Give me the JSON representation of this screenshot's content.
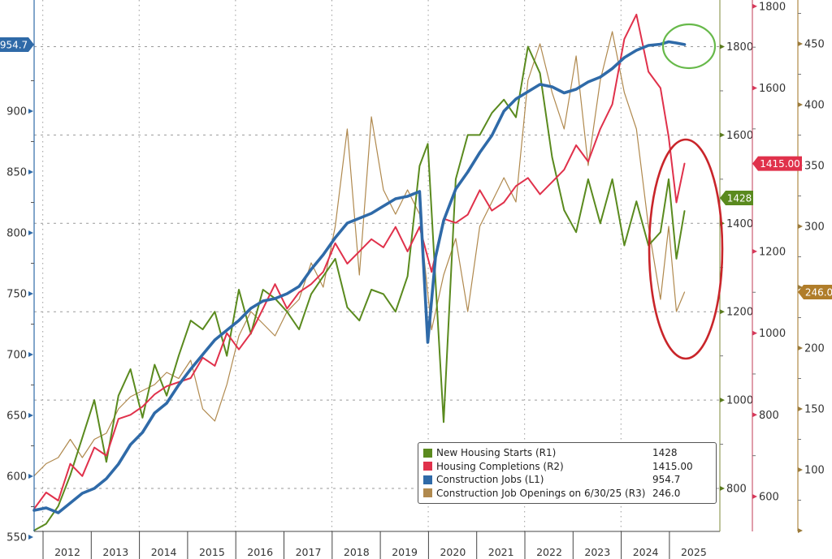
{
  "chart_data": {
    "type": "line",
    "title": "",
    "xlabel": "",
    "x_ticks": [
      "2012",
      "2013",
      "2014",
      "2015",
      "2016",
      "2017",
      "2018",
      "2019",
      "2020",
      "2021",
      "2022",
      "2023",
      "2024",
      "2025"
    ],
    "x_range": [
      2012.0,
      2025.6
    ],
    "axes": {
      "L1": {
        "ticks": [
          "550",
          "600",
          "650",
          "700",
          "750",
          "800",
          "850",
          "900"
        ],
        "range": [
          538,
          985
        ]
      },
      "R1": {
        "ticks": [
          "800",
          "1000",
          "1200",
          "1400",
          "1600",
          "1800"
        ],
        "range": [
          705,
          1910
        ]
      },
      "R2": {
        "ticks": [
          "600",
          "800",
          "1000",
          "1200",
          "1600",
          "1800"
        ],
        "range": [
          500,
          1820
        ]
      },
      "R3": {
        "ticks": [
          "100",
          "150",
          "200",
          "250",
          "300",
          "350",
          "400",
          "450"
        ],
        "range": [
          50,
          490
        ]
      }
    },
    "grid": true,
    "legend_position": "bottom-right",
    "series": [
      {
        "name": "New Housing Starts (R1)",
        "axis": "R1",
        "color": "#5a8a1e",
        "last_value": "1428",
        "x": [
          2012.0,
          2012.25,
          2012.5,
          2012.75,
          2013.0,
          2013.25,
          2013.5,
          2013.75,
          2014.0,
          2014.25,
          2014.5,
          2014.75,
          2015.0,
          2015.25,
          2015.5,
          2015.75,
          2016.0,
          2016.25,
          2016.5,
          2016.75,
          2017.0,
          2017.25,
          2017.5,
          2017.75,
          2018.0,
          2018.25,
          2018.5,
          2018.75,
          2019.0,
          2019.25,
          2019.5,
          2019.75,
          2020.0,
          2020.17,
          2020.33,
          2020.5,
          2020.75,
          2021.0,
          2021.25,
          2021.5,
          2021.75,
          2022.0,
          2022.25,
          2022.5,
          2022.75,
          2023.0,
          2023.25,
          2023.5,
          2023.75,
          2024.0,
          2024.25,
          2024.5,
          2024.75,
          2025.0,
          2025.17,
          2025.33,
          2025.5
        ],
        "values": [
          705,
          720,
          760,
          830,
          915,
          1000,
          860,
          1010,
          1070,
          960,
          1080,
          1010,
          1100,
          1180,
          1160,
          1200,
          1100,
          1250,
          1150,
          1250,
          1230,
          1200,
          1160,
          1240,
          1280,
          1320,
          1210,
          1180,
          1250,
          1240,
          1200,
          1280,
          1530,
          1580,
          1270,
          950,
          1500,
          1600,
          1600,
          1650,
          1680,
          1640,
          1800,
          1740,
          1550,
          1430,
          1380,
          1500,
          1400,
          1500,
          1350,
          1450,
          1350,
          1380,
          1500,
          1320,
          1428
        ]
      },
      {
        "name": "Housing Completions (R2)",
        "axis": "R2",
        "color": "#e0314b",
        "last_value": "1415.00",
        "x": [
          2012.0,
          2012.25,
          2012.5,
          2012.75,
          2013.0,
          2013.25,
          2013.5,
          2013.75,
          2014.0,
          2014.25,
          2014.5,
          2014.75,
          2015.0,
          2015.25,
          2015.5,
          2015.75,
          2016.0,
          2016.25,
          2016.5,
          2016.75,
          2017.0,
          2017.25,
          2017.5,
          2017.75,
          2018.0,
          2018.25,
          2018.5,
          2018.75,
          2019.0,
          2019.25,
          2019.5,
          2019.75,
          2020.0,
          2020.25,
          2020.5,
          2020.75,
          2021.0,
          2021.25,
          2021.5,
          2021.75,
          2022.0,
          2022.25,
          2022.5,
          2022.75,
          2023.0,
          2023.25,
          2023.5,
          2023.75,
          2024.0,
          2024.25,
          2024.5,
          2024.75,
          2025.0,
          2025.17,
          2025.33,
          2025.5
        ],
        "values": [
          570,
          610,
          590,
          680,
          650,
          720,
          700,
          790,
          800,
          820,
          850,
          870,
          880,
          890,
          940,
          920,
          1000,
          960,
          1000,
          1060,
          1120,
          1060,
          1100,
          1120,
          1150,
          1220,
          1170,
          1200,
          1230,
          1210,
          1260,
          1200,
          1260,
          1150,
          1280,
          1270,
          1290,
          1350,
          1300,
          1320,
          1360,
          1380,
          1340,
          1370,
          1400,
          1460,
          1420,
          1500,
          1560,
          1720,
          1780,
          1640,
          1600,
          1480,
          1320,
          1415
        ]
      },
      {
        "name": "Construction Jobs (L1)",
        "axis": "L1",
        "color": "#2f6aa8",
        "last_value": "954.7",
        "x": [
          2012.0,
          2012.25,
          2012.5,
          2012.75,
          2013.0,
          2013.25,
          2013.5,
          2013.75,
          2014.0,
          2014.25,
          2014.5,
          2014.75,
          2015.0,
          2015.25,
          2015.5,
          2015.75,
          2016.0,
          2016.25,
          2016.5,
          2016.75,
          2017.0,
          2017.25,
          2017.5,
          2017.75,
          2018.0,
          2018.25,
          2018.5,
          2018.75,
          2019.0,
          2019.25,
          2019.5,
          2019.75,
          2020.0,
          2020.17,
          2020.33,
          2020.5,
          2020.75,
          2021.0,
          2021.25,
          2021.5,
          2021.75,
          2022.0,
          2022.25,
          2022.5,
          2022.75,
          2023.0,
          2023.25,
          2023.5,
          2023.75,
          2024.0,
          2024.25,
          2024.5,
          2024.75,
          2025.0,
          2025.17,
          2025.33,
          2025.5
        ],
        "values": [
          572,
          574,
          570,
          578,
          586,
          590,
          598,
          610,
          626,
          636,
          652,
          660,
          675,
          688,
          700,
          712,
          720,
          728,
          738,
          744,
          746,
          750,
          756,
          770,
          782,
          796,
          808,
          812,
          816,
          822,
          828,
          830,
          834,
          710,
          780,
          810,
          836,
          850,
          866,
          880,
          900,
          910,
          916,
          922,
          920,
          915,
          918,
          924,
          928,
          935,
          944,
          950,
          954,
          955,
          957,
          956,
          954.7
        ]
      },
      {
        "name": "Construction Job Openings on 6/30/25 (R3)",
        "axis": "R3",
        "color": "#b0894e",
        "last_value": "246.0",
        "x": [
          2012.0,
          2012.25,
          2012.5,
          2012.75,
          2013.0,
          2013.25,
          2013.5,
          2013.75,
          2014.0,
          2014.25,
          2014.5,
          2014.75,
          2015.0,
          2015.25,
          2015.5,
          2015.75,
          2016.0,
          2016.25,
          2016.5,
          2016.75,
          2017.0,
          2017.25,
          2017.5,
          2017.75,
          2018.0,
          2018.25,
          2018.5,
          2018.75,
          2019.0,
          2019.25,
          2019.5,
          2019.75,
          2020.0,
          2020.25,
          2020.5,
          2020.75,
          2021.0,
          2021.25,
          2021.5,
          2021.75,
          2022.0,
          2022.25,
          2022.5,
          2022.75,
          2023.0,
          2023.25,
          2023.5,
          2023.75,
          2024.0,
          2024.25,
          2024.5,
          2024.75,
          2025.0,
          2025.17,
          2025.33,
          2025.5
        ],
        "values": [
          95,
          105,
          110,
          125,
          110,
          125,
          130,
          150,
          160,
          165,
          170,
          180,
          175,
          190,
          150,
          140,
          170,
          210,
          230,
          220,
          210,
          230,
          240,
          270,
          250,
          300,
          380,
          260,
          390,
          330,
          310,
          330,
          310,
          215,
          260,
          290,
          230,
          300,
          320,
          340,
          320,
          420,
          450,
          410,
          380,
          440,
          350,
          420,
          460,
          410,
          380,
          300,
          240,
          300,
          230,
          246
        ]
      }
    ],
    "annotations": [
      {
        "type": "circle",
        "color": "#67b94a",
        "target": "Construction Jobs (L1) latest values"
      },
      {
        "type": "ellipse",
        "color": "#c9252a",
        "target": "New Housing Starts and Construction Job Openings 2024-2025"
      }
    ],
    "badges": {
      "L1": "954.7",
      "R1": "1428",
      "R2": "1415.00",
      "R3": "246.0"
    }
  },
  "legend": {
    "items": [
      {
        "label": "New Housing Starts (R1)",
        "value": "1428",
        "color": "#5a8a1e"
      },
      {
        "label": "Housing Completions (R2)",
        "value": "1415.00",
        "color": "#e0314b"
      },
      {
        "label": "Construction Jobs (L1)",
        "value": "954.7",
        "color": "#2f6aa8"
      },
      {
        "label": "Construction Job Openings on 6/30/25 (R3)",
        "value": "246.0",
        "color": "#b0894e"
      }
    ]
  }
}
